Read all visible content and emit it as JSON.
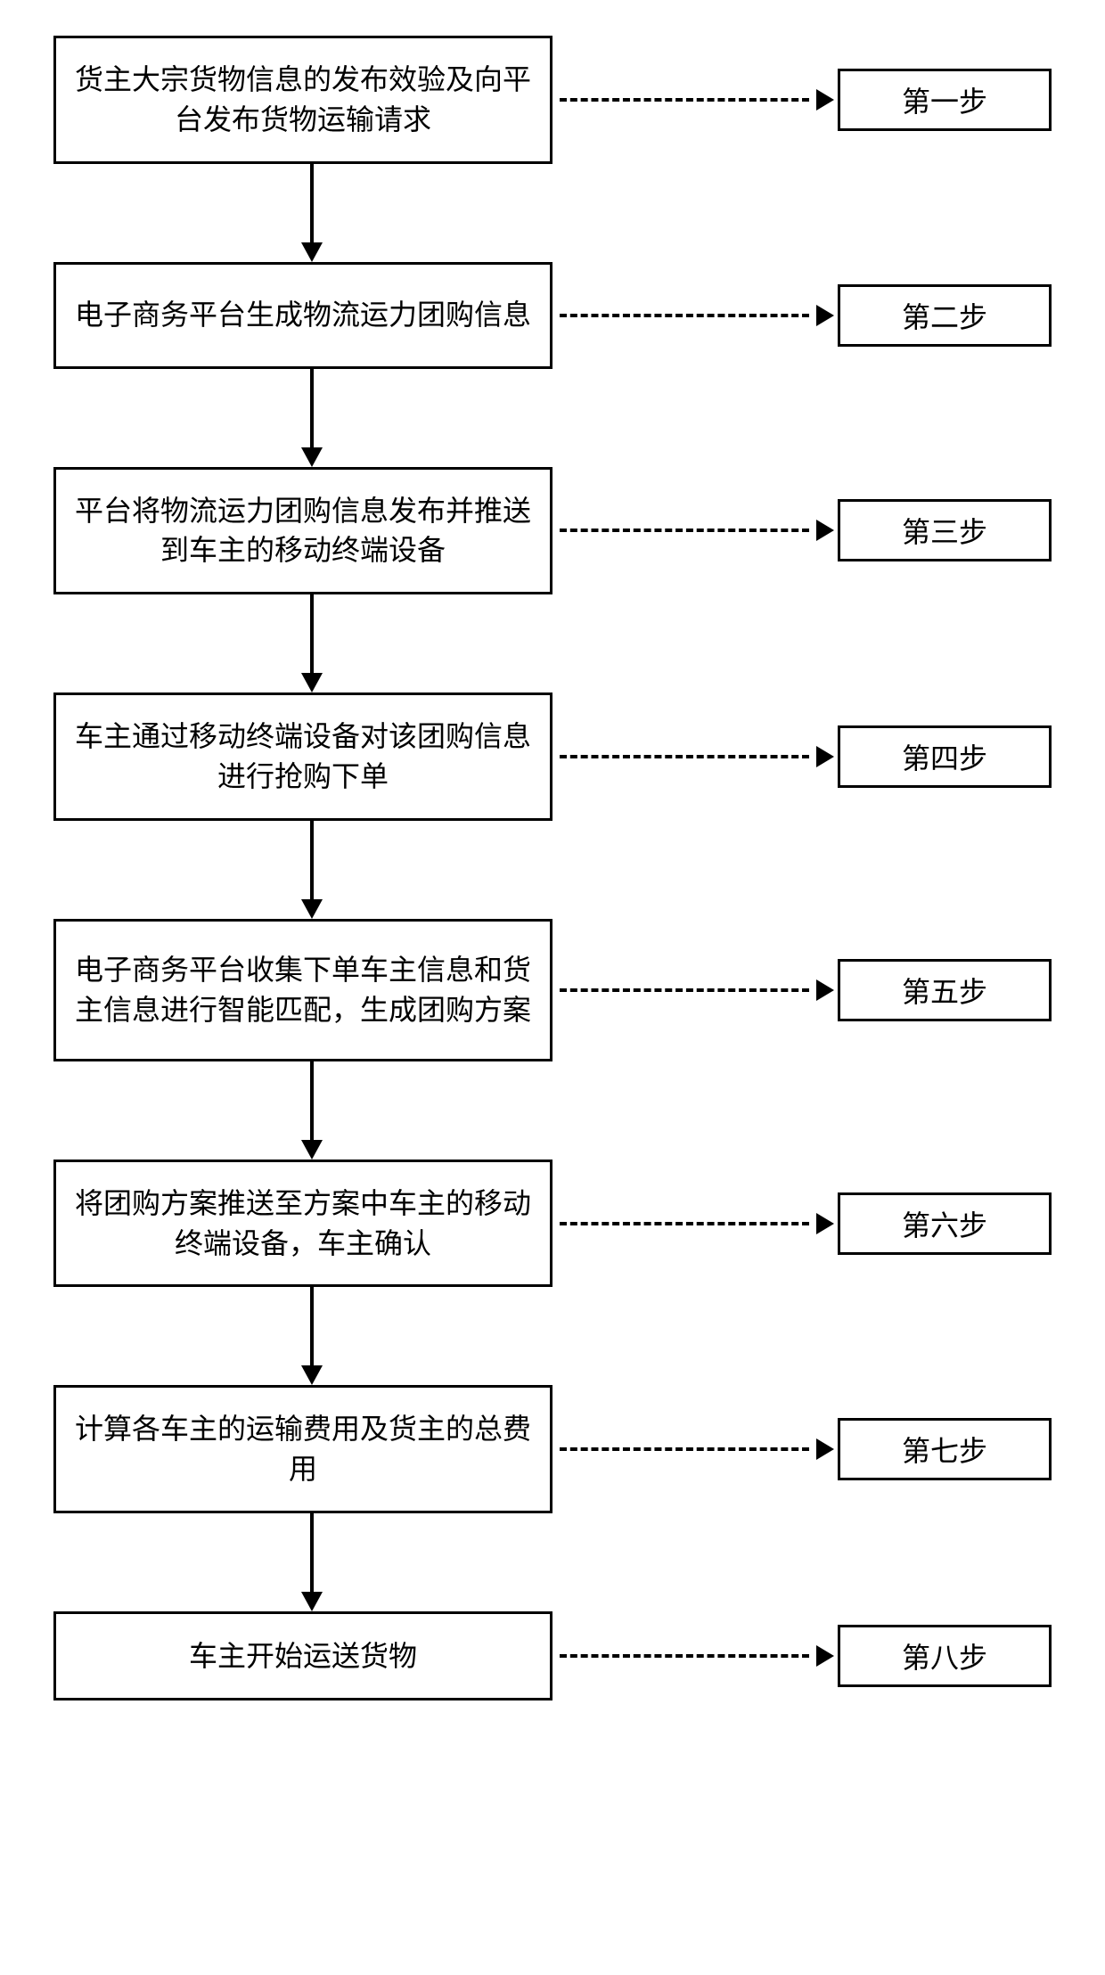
{
  "flowchart": {
    "type": "flowchart",
    "direction": "vertical",
    "colors": {
      "background": "#ffffff",
      "border": "#000000",
      "text": "#000000",
      "arrow": "#000000"
    },
    "box_style": {
      "border_width": 3,
      "main_box_width": 560,
      "label_box_width": 240,
      "label_box_height": 70,
      "font_size": 32
    },
    "arrow_style": {
      "solid_line_width": 4,
      "dash_pattern": "6 6",
      "arrow_head_size": 20,
      "vertical_arrow_height": 110
    },
    "steps": [
      {
        "text": "货主大宗货物信息的发布效验及向平台发布货物运输请求",
        "label": "第一步",
        "lines": 2
      },
      {
        "text": "电子商务平台生成物流运力团购信息",
        "label": "第二步",
        "lines": 2
      },
      {
        "text": "平台将物流运力团购信息发布并推送到车主的移动终端设备",
        "label": "第三步",
        "lines": 2
      },
      {
        "text": "车主通过移动终端设备对该团购信息进行抢购下单",
        "label": "第四步",
        "lines": 2
      },
      {
        "text": "电子商务平台收集下单车主信息和货主信息进行智能匹配，生成团购方案",
        "label": "第五步",
        "lines": 3
      },
      {
        "text": "将团购方案推送至方案中车主的移动终端设备，车主确认",
        "label": "第六步",
        "lines": 2
      },
      {
        "text": "计算各车主的运输费用及货主的总费用",
        "label": "第七步",
        "lines": 2
      },
      {
        "text": "车主开始运送货物",
        "label": "第八步",
        "lines": 1
      }
    ]
  }
}
